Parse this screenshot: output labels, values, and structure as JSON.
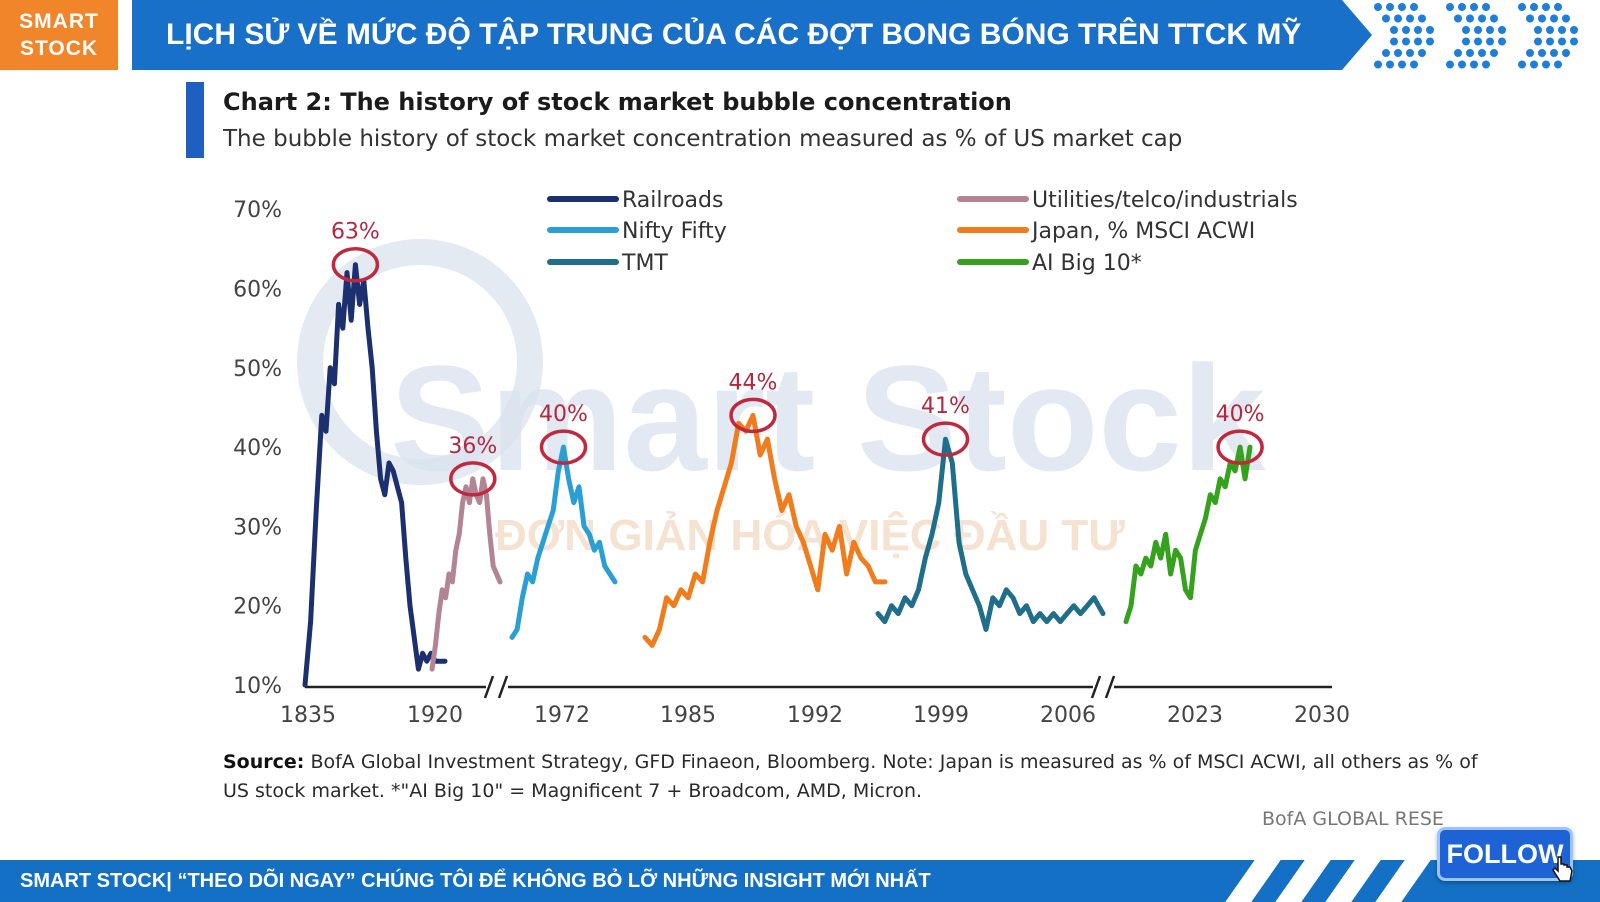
{
  "brand": {
    "line1": "SMART",
    "line2": "STOCK"
  },
  "banner": {
    "title": "LỊCH SỬ VỀ MỨC ĐỘ TẬP TRUNG CỦA CÁC ĐỢT BONG BÓNG TRÊN TTCK MỸ"
  },
  "watermark": {
    "brand": "Smart Stock",
    "tagline": "ĐƠN GIẢN HÓA VIỆC ĐẦU TƯ"
  },
  "chart_data": {
    "type": "line",
    "title": "Chart 2: The history of stock market bubble concentration",
    "subtitle": "The bubble history of stock market concentration measured as % of US market cap",
    "xlabel": "",
    "ylabel": "",
    "ylim": [
      10,
      70
    ],
    "y_ticks": [
      "10%",
      "20%",
      "30%",
      "40%",
      "50%",
      "60%",
      "70%"
    ],
    "x_ticks": [
      "1835",
      "1920",
      "1972",
      "1985",
      "1992",
      "1999",
      "2006",
      "2023",
      "2030"
    ],
    "axis_breaks": "two breaks (//) on x-axis",
    "legend_placement": "top",
    "series": [
      {
        "name": "Railroads",
        "color": "#1c2f6e",
        "x": [
          0.0,
          0.04,
          0.08,
          0.12,
          0.15,
          0.18,
          0.21,
          0.24,
          0.27,
          0.3,
          0.33,
          0.36,
          0.39,
          0.42,
          0.45,
          0.48,
          0.51,
          0.54,
          0.57,
          0.6,
          0.63,
          0.66,
          0.69,
          0.72,
          0.75,
          0.78,
          0.81,
          0.84,
          0.87,
          0.9,
          0.93,
          0.96,
          1.0
        ],
        "values": [
          10,
          18,
          32,
          44,
          42,
          50,
          48,
          58,
          55,
          62,
          56,
          63,
          58,
          61,
          55,
          50,
          42,
          36,
          34,
          38,
          37,
          35,
          33,
          26,
          20,
          16,
          12,
          14,
          13,
          14,
          13,
          13,
          13
        ]
      },
      {
        "name": "Utilities/telco/industrials",
        "color": "#b28494",
        "x": [
          0.0,
          0.05,
          0.1,
          0.15,
          0.2,
          0.25,
          0.3,
          0.35,
          0.4,
          0.45,
          0.5,
          0.55,
          0.6,
          0.65,
          0.7,
          0.75,
          0.8,
          0.85,
          0.9,
          0.95,
          1.0
        ],
        "values": [
          12,
          15,
          19,
          22,
          21,
          24,
          23,
          27,
          29,
          33,
          35,
          33,
          36,
          34,
          33,
          36,
          34,
          29,
          25,
          24,
          23
        ]
      },
      {
        "name": "Nifty Fifty",
        "color": "#2a9fd6",
        "x": [
          0.0,
          0.05,
          0.1,
          0.15,
          0.2,
          0.25,
          0.3,
          0.35,
          0.4,
          0.45,
          0.5,
          0.55,
          0.6,
          0.65,
          0.7,
          0.75,
          0.8,
          0.85,
          0.9,
          0.95,
          1.0
        ],
        "values": [
          16,
          17,
          21,
          24,
          23,
          26,
          28,
          30,
          32,
          37,
          40,
          36,
          33,
          35,
          30,
          29,
          27,
          28,
          25,
          24,
          23
        ]
      },
      {
        "name": "Japan, % MSCI ACWI",
        "color": "#f07c1c",
        "x": [
          0.0,
          0.03,
          0.06,
          0.09,
          0.12,
          0.15,
          0.18,
          0.21,
          0.24,
          0.27,
          0.3,
          0.33,
          0.36,
          0.39,
          0.42,
          0.45,
          0.48,
          0.51,
          0.54,
          0.57,
          0.6,
          0.63,
          0.66,
          0.69,
          0.72,
          0.75,
          0.78,
          0.81,
          0.84,
          0.87,
          0.9,
          0.93,
          0.96,
          1.0
        ],
        "values": [
          16,
          15,
          17,
          21,
          20,
          22,
          21,
          24,
          23,
          28,
          32,
          35,
          38,
          43,
          42,
          44,
          39,
          41,
          36,
          32,
          34,
          30,
          28,
          25,
          22,
          29,
          27,
          30,
          24,
          28,
          26,
          25,
          23,
          23
        ]
      },
      {
        "name": "TMT",
        "color": "#1f6f8b",
        "x": [
          0.0,
          0.03,
          0.06,
          0.09,
          0.12,
          0.15,
          0.18,
          0.21,
          0.24,
          0.27,
          0.3,
          0.33,
          0.36,
          0.39,
          0.42,
          0.45,
          0.48,
          0.51,
          0.54,
          0.57,
          0.6,
          0.63,
          0.66,
          0.69,
          0.72,
          0.75,
          0.78,
          0.81,
          0.84,
          0.87,
          0.9,
          0.93,
          0.96,
          1.0
        ],
        "values": [
          19,
          18,
          20,
          19,
          21,
          20,
          22,
          26,
          29,
          33,
          41,
          38,
          28,
          24,
          22,
          20,
          17,
          21,
          20,
          22,
          21,
          19,
          20,
          18,
          19,
          18,
          19,
          18,
          19,
          20,
          19,
          20,
          21,
          19
        ]
      },
      {
        "name": "AI Big 10*",
        "color": "#35a21e",
        "x": [
          0.0,
          0.04,
          0.08,
          0.12,
          0.16,
          0.2,
          0.24,
          0.28,
          0.32,
          0.36,
          0.4,
          0.44,
          0.48,
          0.52,
          0.56,
          0.6,
          0.64,
          0.68,
          0.72,
          0.76,
          0.8,
          0.84,
          0.88,
          0.92,
          0.96,
          1.0
        ],
        "values": [
          18,
          20,
          25,
          24,
          26,
          25,
          28,
          26,
          29,
          24,
          27,
          26,
          22,
          21,
          27,
          29,
          31,
          34,
          33,
          36,
          35,
          38,
          37,
          40,
          36,
          40
        ]
      }
    ],
    "annotations": [
      "63%",
      "36%",
      "40%",
      "44%",
      "41%",
      "40%"
    ]
  },
  "source": {
    "label": "Source:",
    "text": "BofA Global Investment Strategy, GFD Finaeon, Bloomberg. Note: Japan is measured as % of MSCI ACWI, all others as % of US stock market. *\"AI Big 10\" = Magnificent 7 + Broadcom, AMD, Micron."
  },
  "credit": "BofA GLOBAL RESE",
  "footer": {
    "text": "SMART STOCK| “THEO DÕI NGAY” CHÚNG TÔI ĐỂ KHÔNG BỎ LỠ NHỮNG INSIGHT MỚI NHẤT"
  },
  "follow_button": {
    "label": "FOLLOW"
  }
}
